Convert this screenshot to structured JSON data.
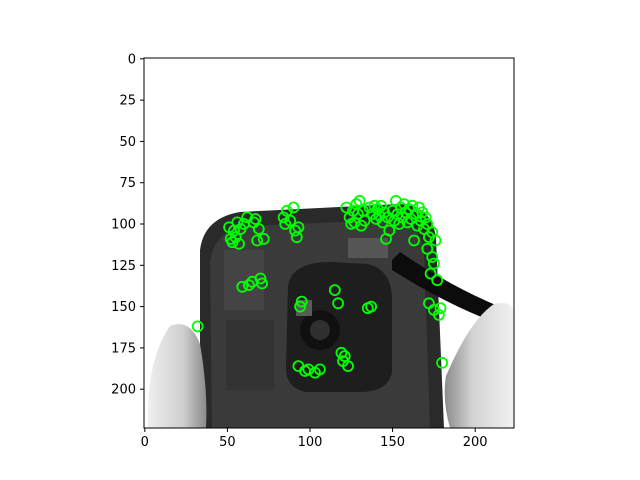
{
  "chart_data": {
    "type": "scatter",
    "title": "",
    "xlabel": "",
    "ylabel": "",
    "xlim": [
      -0.5,
      223.5
    ],
    "ylim": [
      223.5,
      -0.5
    ],
    "y_inverted": true,
    "x_ticks": [
      0,
      50,
      100,
      150,
      200
    ],
    "y_ticks": [
      0,
      25,
      50,
      75,
      100,
      125,
      150,
      175,
      200
    ],
    "background": "grayscale photo of an opened phone held by fingers with a pry tool",
    "marker": {
      "shape": "open-circle",
      "color": "#00ff00"
    },
    "series": [
      {
        "values": [
          [
            32,
            162
          ],
          [
            51,
            102
          ],
          [
            52,
            109
          ],
          [
            53,
            111
          ],
          [
            54,
            104
          ],
          [
            55,
            108
          ],
          [
            56,
            99
          ],
          [
            57,
            112
          ],
          [
            58,
            103
          ],
          [
            59,
            138
          ],
          [
            60,
            100
          ],
          [
            62,
            96
          ],
          [
            63,
            137
          ],
          [
            65,
            135
          ],
          [
            66,
            99
          ],
          [
            67,
            97
          ],
          [
            68,
            110
          ],
          [
            69,
            103
          ],
          [
            70,
            133
          ],
          [
            71,
            136
          ],
          [
            72,
            109
          ],
          [
            84,
            96
          ],
          [
            85,
            100
          ],
          [
            86,
            92
          ],
          [
            88,
            98
          ],
          [
            90,
            90
          ],
          [
            91,
            104
          ],
          [
            92,
            108
          ],
          [
            93,
            102
          ],
          [
            94,
            150
          ],
          [
            95,
            147
          ],
          [
            93,
            186
          ],
          [
            97,
            189
          ],
          [
            99,
            188
          ],
          [
            103,
            190
          ],
          [
            106,
            188
          ],
          [
            115,
            140
          ],
          [
            117,
            148
          ],
          [
            119,
            178
          ],
          [
            120,
            183
          ],
          [
            121,
            180
          ],
          [
            123,
            186
          ],
          [
            122,
            90
          ],
          [
            124,
            96
          ],
          [
            125,
            100
          ],
          [
            126,
            92
          ],
          [
            127,
            99
          ],
          [
            128,
            88
          ],
          [
            129,
            94
          ],
          [
            130,
            86
          ],
          [
            131,
            101
          ],
          [
            132,
            92
          ],
          [
            133,
            98
          ],
          [
            135,
            151
          ],
          [
            136,
            90
          ],
          [
            137,
            150
          ],
          [
            138,
            94
          ],
          [
            139,
            89
          ],
          [
            140,
            97
          ],
          [
            141,
            91
          ],
          [
            142,
            95
          ],
          [
            143,
            89
          ],
          [
            144,
            99
          ],
          [
            145,
            93
          ],
          [
            146,
            109
          ],
          [
            147,
            96
          ],
          [
            148,
            104
          ],
          [
            150,
            92
          ],
          [
            151,
            98
          ],
          [
            152,
            86
          ],
          [
            153,
            94
          ],
          [
            154,
            100
          ],
          [
            155,
            90
          ],
          [
            156,
            96
          ],
          [
            157,
            88
          ],
          [
            158,
            93
          ],
          [
            159,
            99
          ],
          [
            160,
            91
          ],
          [
            161,
            97
          ],
          [
            162,
            89
          ],
          [
            163,
            110
          ],
          [
            164,
            94
          ],
          [
            165,
            101
          ],
          [
            166,
            90
          ],
          [
            167,
            98
          ],
          [
            168,
            93
          ],
          [
            169,
            103
          ],
          [
            170,
            96
          ],
          [
            171,
            115
          ],
          [
            172,
            108
          ],
          [
            173,
            130
          ],
          [
            174,
            120
          ],
          [
            175,
            124
          ],
          [
            176,
            110
          ],
          [
            177,
            134
          ],
          [
            172,
            148
          ],
          [
            175,
            152
          ],
          [
            178,
            155
          ],
          [
            179,
            151
          ],
          [
            180,
            184
          ],
          [
            174,
            105
          ],
          [
            171,
            100
          ]
        ]
      }
    ]
  }
}
